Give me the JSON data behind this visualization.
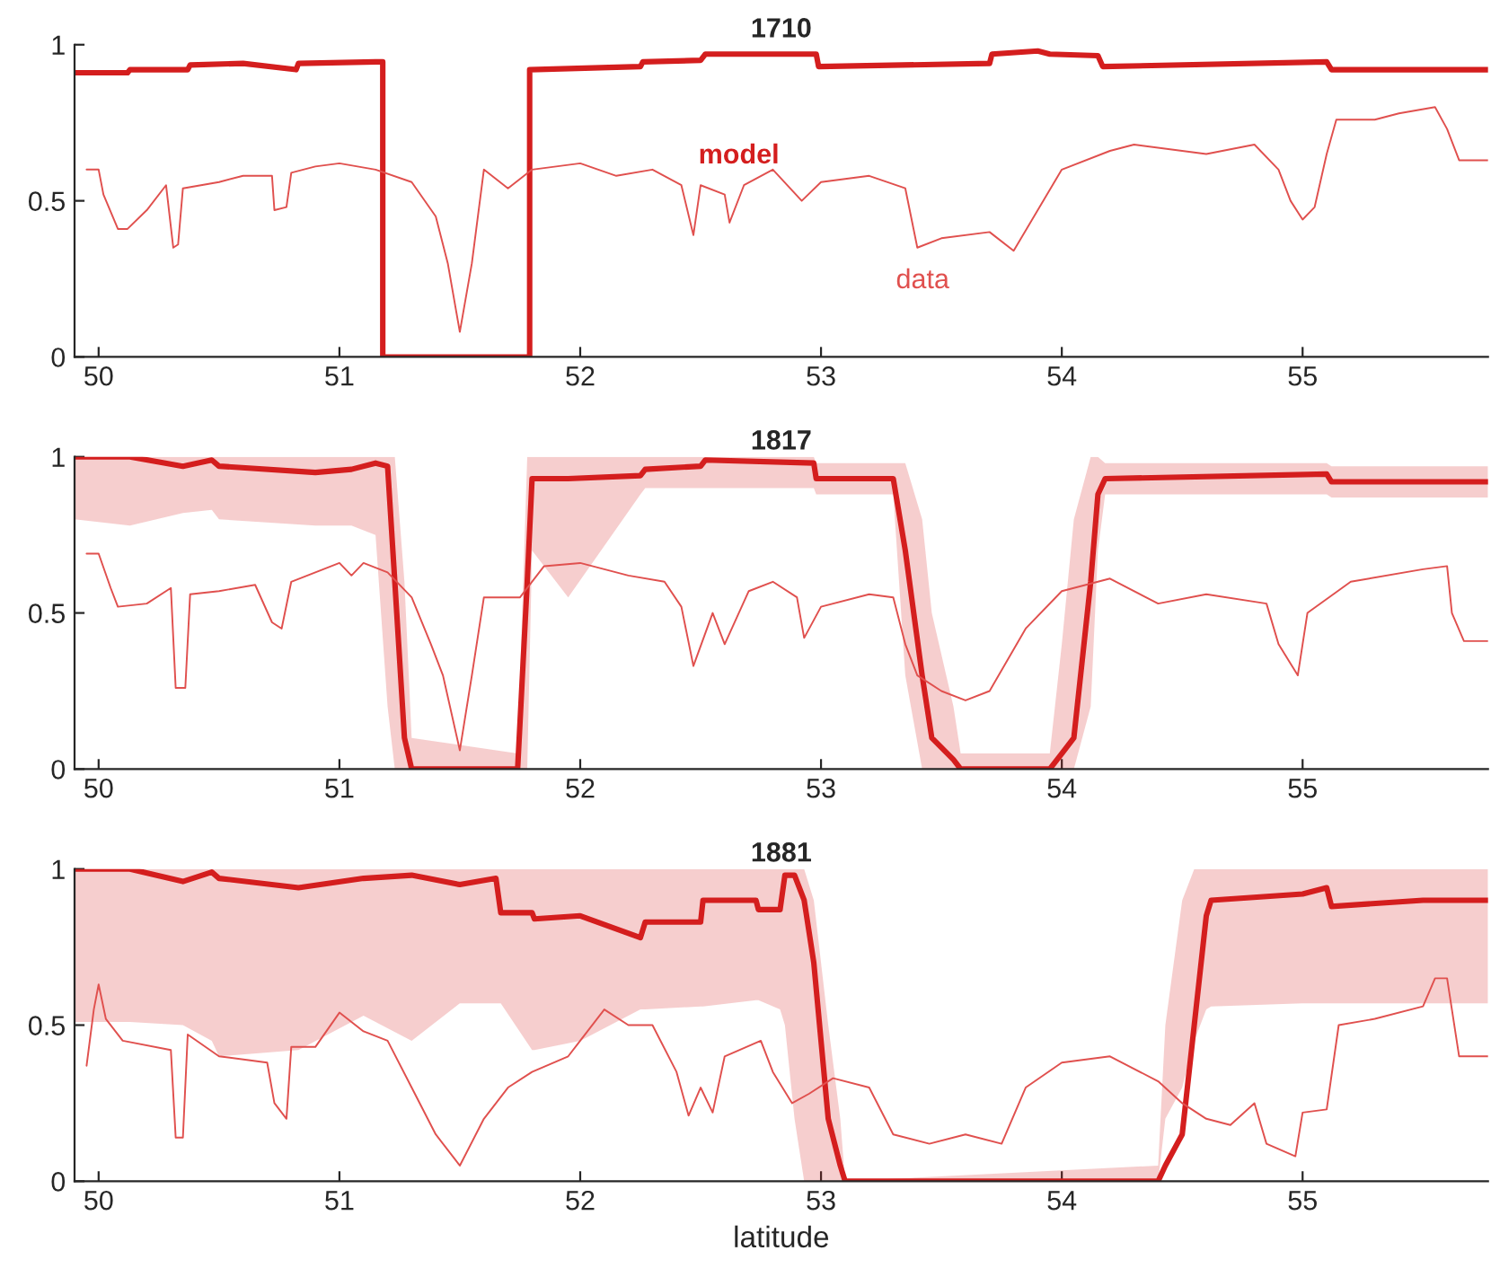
{
  "chart_data": [
    {
      "type": "line",
      "title": "1710",
      "xlim": [
        49.9,
        55.77
      ],
      "xticks": [
        50,
        51,
        52,
        53,
        54,
        55
      ],
      "ylim": [
        0,
        1
      ],
      "yticks": [
        0,
        0.5,
        1
      ],
      "grid": false,
      "legend": false,
      "marker": "none",
      "line_style": "solid",
      "series": [
        {
          "name": "model",
          "color": "#d41e1e",
          "x": [
            49.9,
            50.12,
            50.13,
            50.37,
            50.38,
            50.6,
            50.82,
            50.83,
            51.15,
            51.18,
            51.18,
            51.79,
            51.79,
            52.25,
            52.26,
            52.5,
            52.52,
            52.98,
            52.99,
            53.7,
            53.71,
            53.9,
            53.95,
            54.15,
            54.17,
            55.1,
            55.12,
            55.77
          ],
          "values": [
            0.91,
            0.91,
            0.92,
            0.92,
            0.935,
            0.94,
            0.92,
            0.94,
            0.945,
            0.945,
            0,
            0,
            0.92,
            0.93,
            0.945,
            0.95,
            0.97,
            0.97,
            0.93,
            0.94,
            0.97,
            0.98,
            0.97,
            0.965,
            0.93,
            0.945,
            0.92,
            0.92
          ]
        },
        {
          "name": "data",
          "color": "#e0504e",
          "x": [
            49.95,
            50.0,
            50.02,
            50.08,
            50.12,
            50.2,
            50.28,
            50.31,
            50.33,
            50.35,
            50.5,
            50.6,
            50.72,
            50.73,
            50.78,
            50.8,
            50.9,
            51.0,
            51.15,
            51.3,
            51.4,
            51.45,
            51.5,
            51.55,
            51.6,
            51.7,
            51.8,
            52.0,
            52.15,
            52.3,
            52.42,
            52.47,
            52.5,
            52.6,
            52.62,
            52.68,
            52.8,
            52.92,
            53.0,
            53.2,
            53.35,
            53.4,
            53.5,
            53.7,
            53.8,
            54.0,
            54.2,
            54.3,
            54.6,
            54.8,
            54.9,
            54.95,
            55.0,
            55.05,
            55.1,
            55.14,
            55.3,
            55.4,
            55.55,
            55.6,
            55.65,
            55.77
          ],
          "values": [
            0.6,
            0.6,
            0.52,
            0.41,
            0.41,
            0.47,
            0.55,
            0.35,
            0.36,
            0.54,
            0.56,
            0.58,
            0.58,
            0.47,
            0.48,
            0.59,
            0.61,
            0.62,
            0.6,
            0.56,
            0.45,
            0.3,
            0.08,
            0.3,
            0.6,
            0.54,
            0.6,
            0.62,
            0.58,
            0.6,
            0.55,
            0.39,
            0.55,
            0.52,
            0.43,
            0.55,
            0.6,
            0.5,
            0.56,
            0.58,
            0.54,
            0.35,
            0.38,
            0.4,
            0.34,
            0.6,
            0.66,
            0.68,
            0.65,
            0.68,
            0.6,
            0.5,
            0.44,
            0.48,
            0.65,
            0.76,
            0.76,
            0.78,
            0.8,
            0.73,
            0.63,
            0.63
          ]
        }
      ]
    },
    {
      "type": "line",
      "title": "1817",
      "xlim": [
        49.9,
        55.77
      ],
      "xticks": [
        50,
        51,
        52,
        53,
        54,
        55
      ],
      "ylim": [
        0,
        1
      ],
      "yticks": [
        0,
        0.5,
        1
      ],
      "grid": false,
      "legend": false,
      "marker": "none",
      "line_style": "solid",
      "series": [
        {
          "color": "#d41e1e",
          "x": [
            49.9,
            50.13,
            50.35,
            50.47,
            50.5,
            50.9,
            51.05,
            51.15,
            51.2,
            51.23,
            51.27,
            51.3,
            51.74,
            51.78,
            51.8,
            51.95,
            52.25,
            52.27,
            52.5,
            52.52,
            52.97,
            52.98,
            53.3,
            53.35,
            53.42,
            53.46,
            53.55,
            53.58,
            53.95,
            54.0,
            54.05,
            54.12,
            54.15,
            54.18,
            55.1,
            55.12,
            55.77
          ],
          "values": [
            1,
            1,
            0.97,
            0.99,
            0.97,
            0.95,
            0.96,
            0.98,
            0.97,
            0.6,
            0.1,
            0,
            0,
            0.6,
            0.93,
            0.93,
            0.94,
            0.96,
            0.97,
            0.99,
            0.98,
            0.93,
            0.93,
            0.7,
            0.3,
            0.1,
            0.03,
            0,
            0,
            0.05,
            0.1,
            0.6,
            0.88,
            0.93,
            0.945,
            0.92,
            0.92
          ],
          "lower": [
            0.8,
            0.78,
            0.82,
            0.83,
            0.8,
            0.78,
            0.78,
            0.75,
            0.2,
            0,
            0,
            0,
            0,
            0,
            0.7,
            0.55,
            0.88,
            0.9,
            0.9,
            0.9,
            0.9,
            0.88,
            0.88,
            0.3,
            0,
            0,
            0,
            0,
            0,
            0,
            0,
            0.2,
            0.7,
            0.88,
            0.88,
            0.87,
            0.87
          ],
          "upper": [
            1,
            1,
            1,
            1,
            1,
            1,
            1,
            1,
            1,
            1,
            0.6,
            0.1,
            0.05,
            1,
            1,
            1,
            1,
            1,
            1,
            1,
            1,
            0.98,
            0.98,
            0.98,
            0.8,
            0.5,
            0.2,
            0.05,
            0.05,
            0.4,
            0.8,
            1,
            1,
            0.98,
            0.98,
            0.97,
            0.97
          ]
        },
        {
          "color": "#e0504e",
          "x": [
            49.95,
            50.0,
            50.05,
            50.08,
            50.2,
            50.3,
            50.32,
            50.36,
            50.38,
            50.5,
            50.65,
            50.72,
            50.76,
            50.8,
            50.9,
            51.0,
            51.05,
            51.1,
            51.2,
            51.3,
            51.38,
            51.43,
            51.5,
            51.55,
            51.6,
            51.75,
            51.85,
            52.0,
            52.2,
            52.35,
            52.42,
            52.47,
            52.55,
            52.6,
            52.7,
            52.8,
            52.9,
            52.93,
            53.0,
            53.2,
            53.3,
            53.35,
            53.4,
            53.5,
            53.6,
            53.7,
            53.85,
            54.0,
            54.2,
            54.4,
            54.6,
            54.85,
            54.9,
            54.98,
            55.02,
            55.2,
            55.5,
            55.6,
            55.62,
            55.67,
            55.77
          ],
          "values": [
            0.69,
            0.69,
            0.58,
            0.52,
            0.53,
            0.58,
            0.26,
            0.26,
            0.56,
            0.57,
            0.59,
            0.47,
            0.45,
            0.6,
            0.63,
            0.66,
            0.62,
            0.66,
            0.63,
            0.55,
            0.4,
            0.3,
            0.06,
            0.3,
            0.55,
            0.55,
            0.65,
            0.66,
            0.62,
            0.6,
            0.52,
            0.33,
            0.5,
            0.4,
            0.57,
            0.6,
            0.55,
            0.42,
            0.52,
            0.56,
            0.55,
            0.4,
            0.3,
            0.25,
            0.22,
            0.25,
            0.45,
            0.57,
            0.61,
            0.53,
            0.56,
            0.53,
            0.4,
            0.3,
            0.5,
            0.6,
            0.64,
            0.65,
            0.5,
            0.41,
            0.41
          ]
        }
      ]
    },
    {
      "type": "line",
      "title": "1881",
      "xlabel": "latitude",
      "xlim": [
        49.9,
        55.77
      ],
      "xticks": [
        50,
        51,
        52,
        53,
        54,
        55
      ],
      "ylim": [
        0,
        1
      ],
      "yticks": [
        0,
        0.5,
        1
      ],
      "grid": false,
      "legend": false,
      "marker": "none",
      "line_style": "solid",
      "series": [
        {
          "color": "#d41e1e",
          "x": [
            49.9,
            50.13,
            50.35,
            50.47,
            50.5,
            50.83,
            51.1,
            51.3,
            51.5,
            51.65,
            51.67,
            51.8,
            51.81,
            52.0,
            52.25,
            52.27,
            52.5,
            52.51,
            52.73,
            52.74,
            52.83,
            52.85,
            52.89,
            52.93,
            52.97,
            53.03,
            53.08,
            53.1,
            54.4,
            54.43,
            54.5,
            54.55,
            54.6,
            54.62,
            55.0,
            55.1,
            55.12,
            55.5,
            55.77
          ],
          "values": [
            1,
            1,
            0.96,
            0.99,
            0.97,
            0.94,
            0.97,
            0.98,
            0.95,
            0.97,
            0.86,
            0.86,
            0.84,
            0.85,
            0.78,
            0.83,
            0.83,
            0.9,
            0.9,
            0.87,
            0.87,
            0.98,
            0.98,
            0.9,
            0.7,
            0.2,
            0.05,
            0,
            0,
            0.05,
            0.15,
            0.5,
            0.85,
            0.9,
            0.92,
            0.94,
            0.88,
            0.9,
            0.9
          ],
          "lower": [
            0.51,
            0.51,
            0.5,
            0.45,
            0.4,
            0.42,
            0.53,
            0.45,
            0.57,
            0.57,
            0.57,
            0.42,
            0.42,
            0.45,
            0.55,
            0.55,
            0.56,
            0.56,
            0.58,
            0.58,
            0.55,
            0.5,
            0.2,
            0,
            0,
            0,
            0,
            0,
            0,
            0.2,
            0.3,
            0.45,
            0.55,
            0.56,
            0.57,
            0.57,
            0.57,
            0.57,
            0.57
          ],
          "upper": [
            1,
            1,
            1,
            1,
            1,
            1,
            1,
            1,
            1,
            1,
            1,
            1,
            1,
            1,
            1,
            1,
            1,
            1,
            1,
            1,
            1,
            1,
            1,
            1,
            0.9,
            0.5,
            0.2,
            0,
            0.05,
            0.5,
            0.9,
            1,
            1,
            1,
            1,
            1,
            1,
            1,
            1
          ]
        },
        {
          "color": "#e0504e",
          "x": [
            49.95,
            49.98,
            50.0,
            50.03,
            50.1,
            50.3,
            50.32,
            50.35,
            50.37,
            50.5,
            50.7,
            50.73,
            50.78,
            50.8,
            50.9,
            51.0,
            51.1,
            51.2,
            51.3,
            51.4,
            51.5,
            51.6,
            51.7,
            51.8,
            51.95,
            52.0,
            52.1,
            52.2,
            52.3,
            52.4,
            52.45,
            52.5,
            52.55,
            52.6,
            52.75,
            52.8,
            52.88,
            52.95,
            53.05,
            53.2,
            53.3,
            53.45,
            53.6,
            53.75,
            53.85,
            54.0,
            54.2,
            54.4,
            54.5,
            54.6,
            54.7,
            54.8,
            54.85,
            54.97,
            55.0,
            55.1,
            55.15,
            55.3,
            55.5,
            55.55,
            55.6,
            55.65,
            55.77
          ],
          "values": [
            0.37,
            0.55,
            0.63,
            0.52,
            0.45,
            0.42,
            0.14,
            0.14,
            0.47,
            0.4,
            0.38,
            0.25,
            0.2,
            0.43,
            0.43,
            0.54,
            0.48,
            0.45,
            0.3,
            0.15,
            0.05,
            0.2,
            0.3,
            0.35,
            0.4,
            0.45,
            0.55,
            0.5,
            0.5,
            0.35,
            0.21,
            0.3,
            0.22,
            0.4,
            0.45,
            0.35,
            0.25,
            0.28,
            0.33,
            0.3,
            0.15,
            0.12,
            0.15,
            0.12,
            0.3,
            0.38,
            0.4,
            0.32,
            0.25,
            0.2,
            0.18,
            0.25,
            0.12,
            0.08,
            0.22,
            0.23,
            0.5,
            0.52,
            0.56,
            0.65,
            0.65,
            0.4,
            0.4
          ]
        }
      ]
    }
  ]
}
